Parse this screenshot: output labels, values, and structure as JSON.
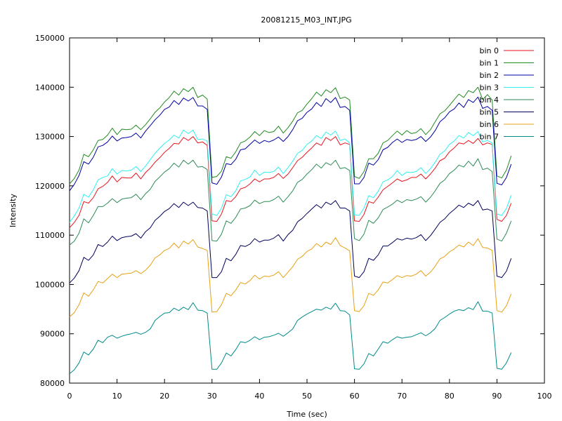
{
  "chart_data": {
    "type": "line",
    "title": "20081215_M03_INT.JPG",
    "xlabel": "Time (sec)",
    "ylabel": "Intensity",
    "xlim": [
      0,
      100
    ],
    "ylim": [
      80000,
      150000
    ],
    "x_ticks": [
      0,
      10,
      20,
      30,
      40,
      50,
      60,
      70,
      80,
      90,
      100
    ],
    "y_ticks": [
      80000,
      90000,
      100000,
      110000,
      120000,
      130000,
      140000,
      150000
    ],
    "grid": false,
    "legend_position": "top-right",
    "x": [
      0,
      1,
      2,
      3,
      4,
      5,
      6,
      7,
      8,
      9,
      10,
      11,
      12,
      13,
      14,
      15,
      16,
      17,
      18,
      19,
      20,
      21,
      22,
      23,
      24,
      25,
      26,
      27,
      28,
      29,
      30,
      31,
      32,
      33,
      34,
      35,
      36,
      37,
      38,
      39,
      40,
      41,
      42,
      43,
      44,
      45,
      46,
      47,
      48,
      49,
      50,
      51,
      52,
      53,
      54,
      55,
      56,
      57,
      58,
      59,
      60,
      61,
      62,
      63,
      64,
      65,
      66,
      67,
      68,
      69,
      70,
      71,
      72,
      73,
      74,
      75,
      76,
      77,
      78,
      79,
      80,
      81,
      82,
      83,
      84,
      85,
      86,
      87,
      88,
      89,
      90,
      91,
      92,
      93
    ],
    "series": [
      {
        "name": "bin 0",
        "color": "#e8141c",
        "values": [
          111500,
          112600,
          114000,
          116800,
          116500,
          117600,
          119400,
          119900,
          120700,
          122000,
          120800,
          121700,
          121600,
          121600,
          122600,
          121400,
          122700,
          123600,
          124800,
          125700,
          126800,
          127600,
          128600,
          128500,
          129800,
          129200,
          130000,
          128700,
          128900,
          128200,
          112900,
          112800,
          114300,
          117000,
          116800,
          117800,
          119400,
          119700,
          120400,
          121400,
          120800,
          121400,
          121400,
          121700,
          122500,
          121500,
          122400,
          123700,
          125100,
          125800,
          126800,
          127700,
          128700,
          128200,
          129800,
          129200,
          130000,
          128300,
          128700,
          128400,
          112900,
          112800,
          114200,
          116800,
          116500,
          117700,
          119200,
          119900,
          120600,
          121400,
          120900,
          121200,
          121700,
          121700,
          122400,
          121400,
          122400,
          123600,
          125100,
          125600,
          126900,
          127700,
          128700,
          128500,
          129200,
          128600,
          129600,
          128300,
          128700,
          128400,
          113200,
          112800,
          114000,
          116500
        ]
      },
      {
        "name": "bin 1",
        "color": "#218a21",
        "values": [
          120400,
          121500,
          123200,
          126400,
          125900,
          127300,
          129200,
          129400,
          130300,
          131700,
          130400,
          131500,
          131400,
          131500,
          132300,
          131400,
          132400,
          133600,
          134900,
          135800,
          137000,
          137900,
          139200,
          138400,
          139700,
          139100,
          140000,
          137900,
          138400,
          137600,
          121700,
          121900,
          123000,
          125900,
          125600,
          126900,
          128700,
          129100,
          129900,
          131000,
          130200,
          131200,
          130800,
          131000,
          132100,
          130700,
          131800,
          133100,
          134800,
          135300,
          136600,
          137700,
          139000,
          138200,
          139500,
          138900,
          139900,
          137700,
          138000,
          137400,
          121900,
          121500,
          122900,
          125500,
          125500,
          126600,
          128700,
          129200,
          130200,
          131100,
          130300,
          131200,
          130600,
          130800,
          131600,
          130400,
          131400,
          133000,
          134600,
          135200,
          136300,
          137500,
          138600,
          137900,
          139300,
          138900,
          140000,
          137500,
          138500,
          137400,
          122000,
          121600,
          123200,
          126100
        ]
      },
      {
        "name": "bin 2",
        "color": "#0000a0",
        "values": [
          119000,
          120300,
          122100,
          124900,
          124400,
          125800,
          127900,
          128200,
          128900,
          130100,
          129100,
          129700,
          129800,
          130000,
          130700,
          129700,
          131100,
          132200,
          133400,
          134300,
          135500,
          136000,
          137300,
          136500,
          137800,
          137200,
          137900,
          136200,
          136200,
          135500,
          120600,
          120300,
          121800,
          124500,
          124300,
          125400,
          127300,
          127500,
          128400,
          129300,
          128600,
          129200,
          128900,
          129300,
          129900,
          129000,
          130000,
          131400,
          133200,
          133700,
          134900,
          135600,
          136900,
          136100,
          137700,
          136900,
          137900,
          135900,
          136100,
          135300,
          120400,
          120400,
          121700,
          124600,
          124200,
          125300,
          127300,
          127800,
          128800,
          129500,
          128800,
          129400,
          129200,
          129400,
          130000,
          129000,
          129900,
          131200,
          133000,
          133800,
          135000,
          135600,
          136800,
          135900,
          137500,
          136900,
          138000,
          135700,
          136100,
          135300,
          120500,
          120200,
          121700,
          124400
        ]
      },
      {
        "name": "bin 3",
        "color": "#30f0f0",
        "values": [
          112600,
          113900,
          115500,
          118300,
          117700,
          119200,
          121200,
          121700,
          122000,
          123500,
          122400,
          123100,
          123000,
          123200,
          123900,
          122900,
          124000,
          125300,
          126600,
          127600,
          128600,
          129300,
          130300,
          129700,
          131300,
          130600,
          131300,
          129400,
          129500,
          129100,
          114300,
          114000,
          115500,
          118200,
          117800,
          119000,
          121000,
          121300,
          121800,
          123200,
          122100,
          122800,
          122700,
          122900,
          123800,
          122500,
          123700,
          125000,
          126600,
          127200,
          128400,
          129100,
          130200,
          129600,
          130900,
          130300,
          131100,
          129200,
          129500,
          128700,
          114100,
          114000,
          115500,
          118000,
          117600,
          118900,
          120800,
          121200,
          121900,
          123100,
          122100,
          122800,
          122700,
          122900,
          123700,
          122500,
          123500,
          124800,
          126400,
          127100,
          128400,
          129100,
          130200,
          129700,
          130800,
          130200,
          131000,
          128900,
          129200,
          128700,
          114300,
          114000,
          115400,
          118100
        ]
      },
      {
        "name": "bin 4",
        "color": "#2e8b57",
        "values": [
          108000,
          108800,
          110400,
          113300,
          112500,
          114000,
          115800,
          115800,
          116500,
          117400,
          116600,
          117300,
          117500,
          117600,
          118300,
          117200,
          118400,
          119300,
          120900,
          121800,
          122800,
          123500,
          124600,
          123800,
          125200,
          124400,
          125200,
          123800,
          123900,
          123300,
          108900,
          108800,
          110200,
          112900,
          112400,
          113600,
          115300,
          115500,
          116000,
          117100,
          116400,
          116800,
          116800,
          117200,
          117900,
          116700,
          117800,
          119000,
          120700,
          121300,
          122400,
          123300,
          124400,
          123600,
          124700,
          124200,
          125200,
          123500,
          123700,
          123100,
          109300,
          108900,
          110200,
          113000,
          112400,
          113500,
          115200,
          115700,
          116300,
          117100,
          116600,
          117200,
          117000,
          117300,
          117800,
          116700,
          117700,
          119000,
          120500,
          121200,
          122500,
          123200,
          124200,
          123800,
          125000,
          124000,
          125500,
          123300,
          123600,
          122900,
          109200,
          108800,
          110400,
          112900
        ]
      },
      {
        "name": "bin 5",
        "color": "#00005c",
        "values": [
          100300,
          101300,
          102800,
          105500,
          104900,
          106000,
          108100,
          107700,
          108600,
          109800,
          108900,
          109500,
          109700,
          109800,
          110300,
          109400,
          110700,
          111500,
          113000,
          113800,
          114800,
          115400,
          116400,
          115600,
          116700,
          116000,
          116700,
          115600,
          115500,
          114900,
          101400,
          101400,
          102600,
          105300,
          104800,
          106100,
          107900,
          107700,
          108200,
          109300,
          108600,
          109000,
          109000,
          109400,
          110100,
          108800,
          110100,
          111000,
          112700,
          113400,
          114400,
          115300,
          116200,
          115500,
          116700,
          116200,
          117000,
          115500,
          115500,
          114900,
          101700,
          101400,
          102600,
          105300,
          104900,
          106000,
          107800,
          107800,
          108500,
          109300,
          109000,
          109400,
          109200,
          109500,
          110100,
          108900,
          109900,
          111200,
          112600,
          113300,
          114400,
          115200,
          116100,
          115600,
          116500,
          116000,
          117000,
          115100,
          115300,
          114900,
          101700,
          101400,
          102700,
          105300
        ]
      },
      {
        "name": "bin 6",
        "color": "#e8a014",
        "values": [
          93400,
          94300,
          95900,
          98300,
          97600,
          98900,
          100600,
          100300,
          101200,
          102100,
          101400,
          102100,
          102200,
          102300,
          102800,
          102200,
          102900,
          103900,
          105400,
          106000,
          106900,
          107300,
          108400,
          107400,
          108800,
          108200,
          109100,
          107600,
          107300,
          106900,
          94400,
          94500,
          95900,
          98200,
          97700,
          98900,
          100400,
          100100,
          100800,
          101900,
          101100,
          101700,
          101600,
          101900,
          102600,
          101400,
          102500,
          103600,
          105100,
          105700,
          106700,
          107200,
          108300,
          107600,
          108600,
          108100,
          109500,
          107900,
          107400,
          106800,
          94700,
          94500,
          95700,
          98200,
          97800,
          98900,
          100500,
          100300,
          101000,
          101800,
          101400,
          101800,
          101700,
          102100,
          102800,
          101700,
          102500,
          103700,
          105200,
          105700,
          106600,
          107200,
          108000,
          107600,
          108600,
          107900,
          109300,
          107500,
          107400,
          106900,
          94700,
          94400,
          95700,
          98100
        ]
      },
      {
        "name": "bin 7",
        "color": "#008b8b",
        "values": [
          81900,
          82700,
          84100,
          86300,
          85700,
          86900,
          88700,
          88200,
          89300,
          89700,
          89100,
          89500,
          89800,
          90000,
          90300,
          89900,
          90300,
          91000,
          92700,
          93500,
          94200,
          94300,
          95200,
          94700,
          95400,
          94900,
          96300,
          94800,
          94700,
          94200,
          82800,
          82800,
          84100,
          86100,
          85500,
          86800,
          88400,
          88200,
          88700,
          89400,
          88800,
          89300,
          89400,
          89700,
          90100,
          89500,
          90200,
          91000,
          92700,
          93400,
          94000,
          94500,
          95000,
          94800,
          95400,
          95000,
          96200,
          94700,
          94600,
          93800,
          82900,
          82800,
          83900,
          86000,
          85500,
          86900,
          88400,
          88100,
          88800,
          89400,
          89100,
          89300,
          89400,
          89800,
          90200,
          89600,
          90200,
          91100,
          92700,
          93300,
          94000,
          94600,
          94900,
          94700,
          95300,
          94900,
          96500,
          94600,
          94600,
          94200,
          83000,
          82800,
          84100,
          86200
        ]
      }
    ]
  }
}
